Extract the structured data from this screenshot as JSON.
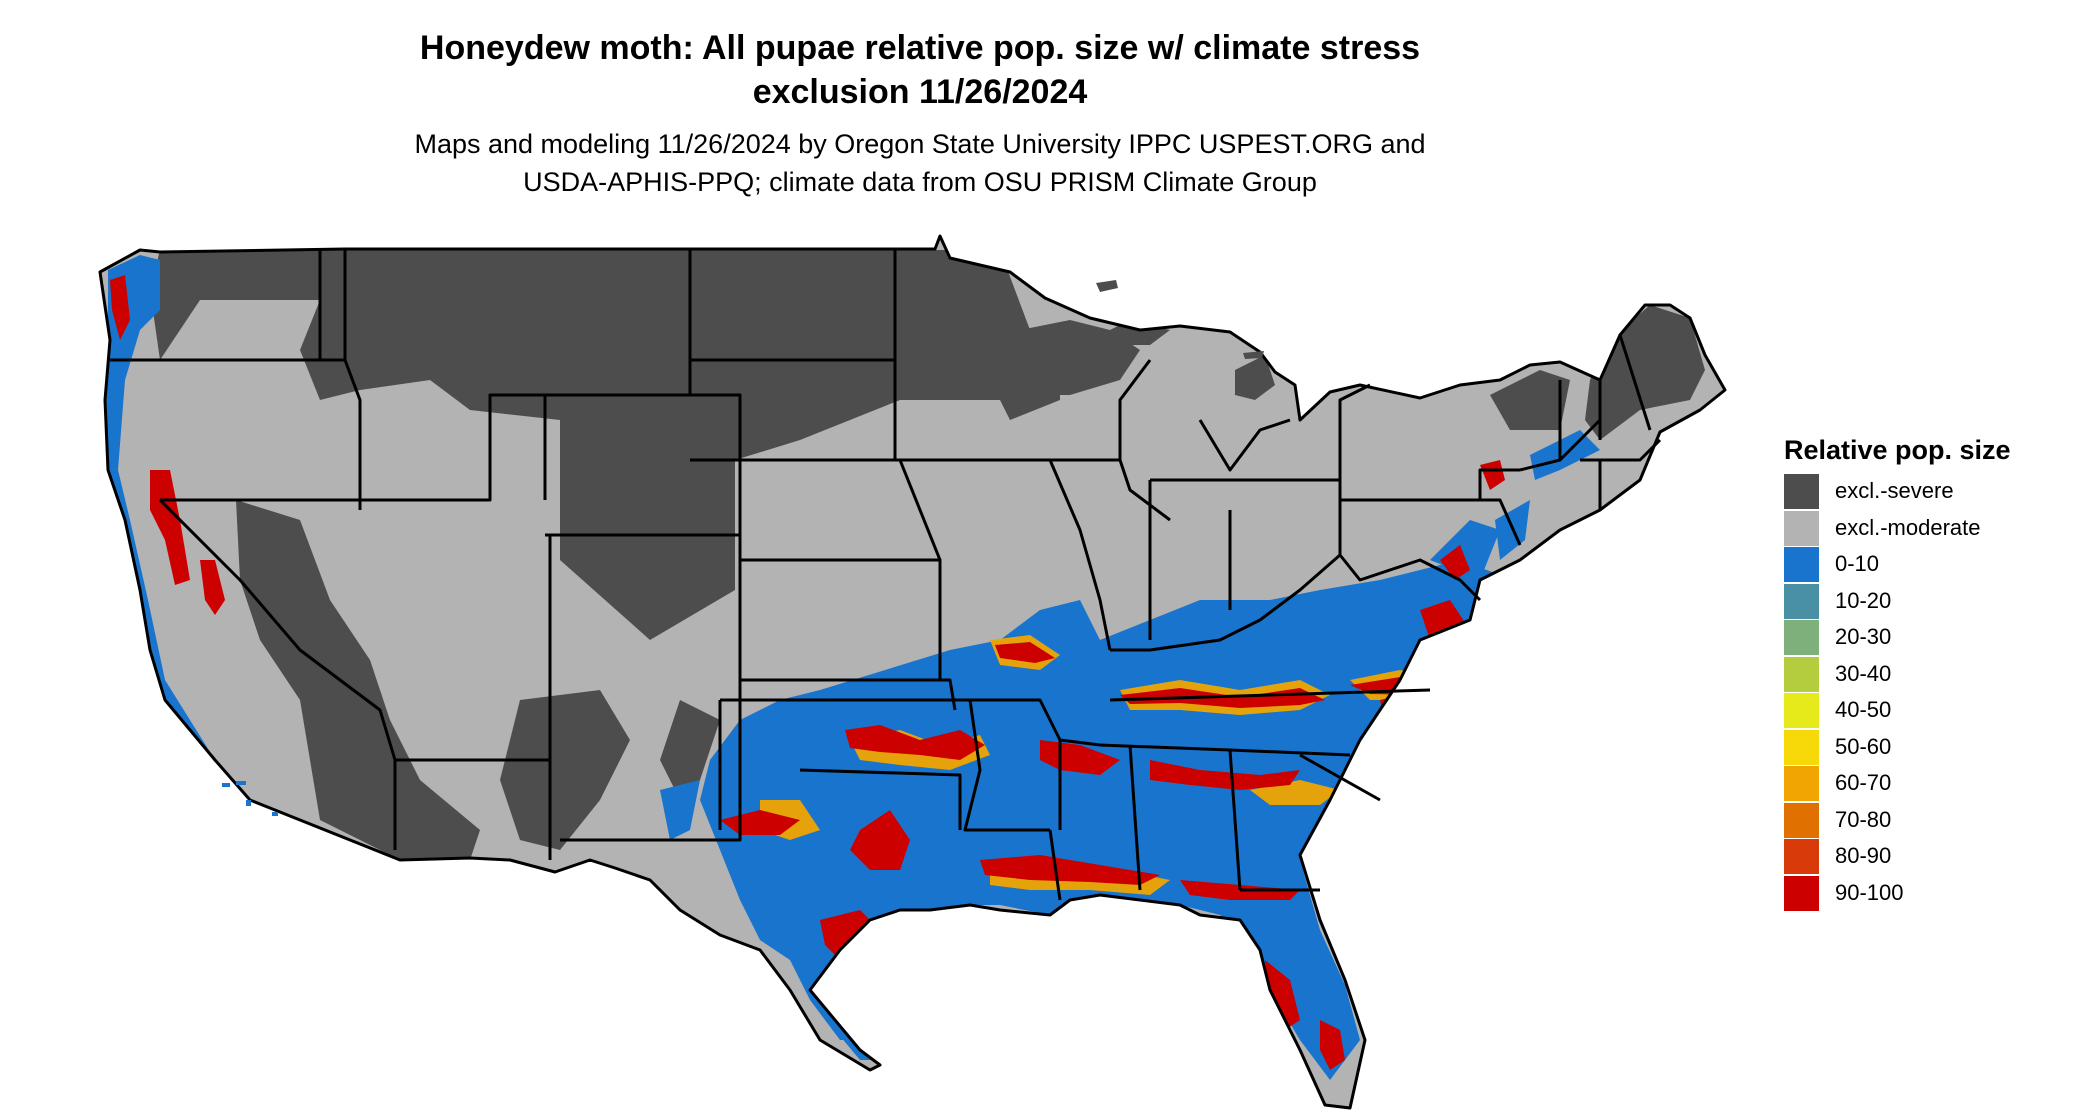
{
  "title": {
    "line1": "Honeydew moth: All pupae relative pop. size w/ climate stress",
    "line2": "exclusion 11/26/2024"
  },
  "subtitle": {
    "line1": "Maps and modeling 11/26/2024 by Oregon State University IPPC USPEST.ORG and",
    "line2": "USDA-APHIS-PPQ; climate data from OSU PRISM Climate Group"
  },
  "legend": {
    "title": "Relative pop. size",
    "items": [
      {
        "label": "excl.-severe",
        "color": "#4d4d4d"
      },
      {
        "label": "excl.-moderate",
        "color": "#b3b3b3"
      },
      {
        "label": "0-10",
        "color": "#1874cd"
      },
      {
        "label": "10-20",
        "color": "#4a90a4"
      },
      {
        "label": "20-30",
        "color": "#7db07a"
      },
      {
        "label": "30-40",
        "color": "#b3cd3e"
      },
      {
        "label": "40-50",
        "color": "#e6ea1a"
      },
      {
        "label": "50-60",
        "color": "#f7d90a"
      },
      {
        "label": "60-70",
        "color": "#f0a500"
      },
      {
        "label": "70-80",
        "color": "#e07000"
      },
      {
        "label": "80-90",
        "color": "#d83a0a"
      },
      {
        "label": "90-100",
        "color": "#cd0000"
      }
    ]
  }
}
